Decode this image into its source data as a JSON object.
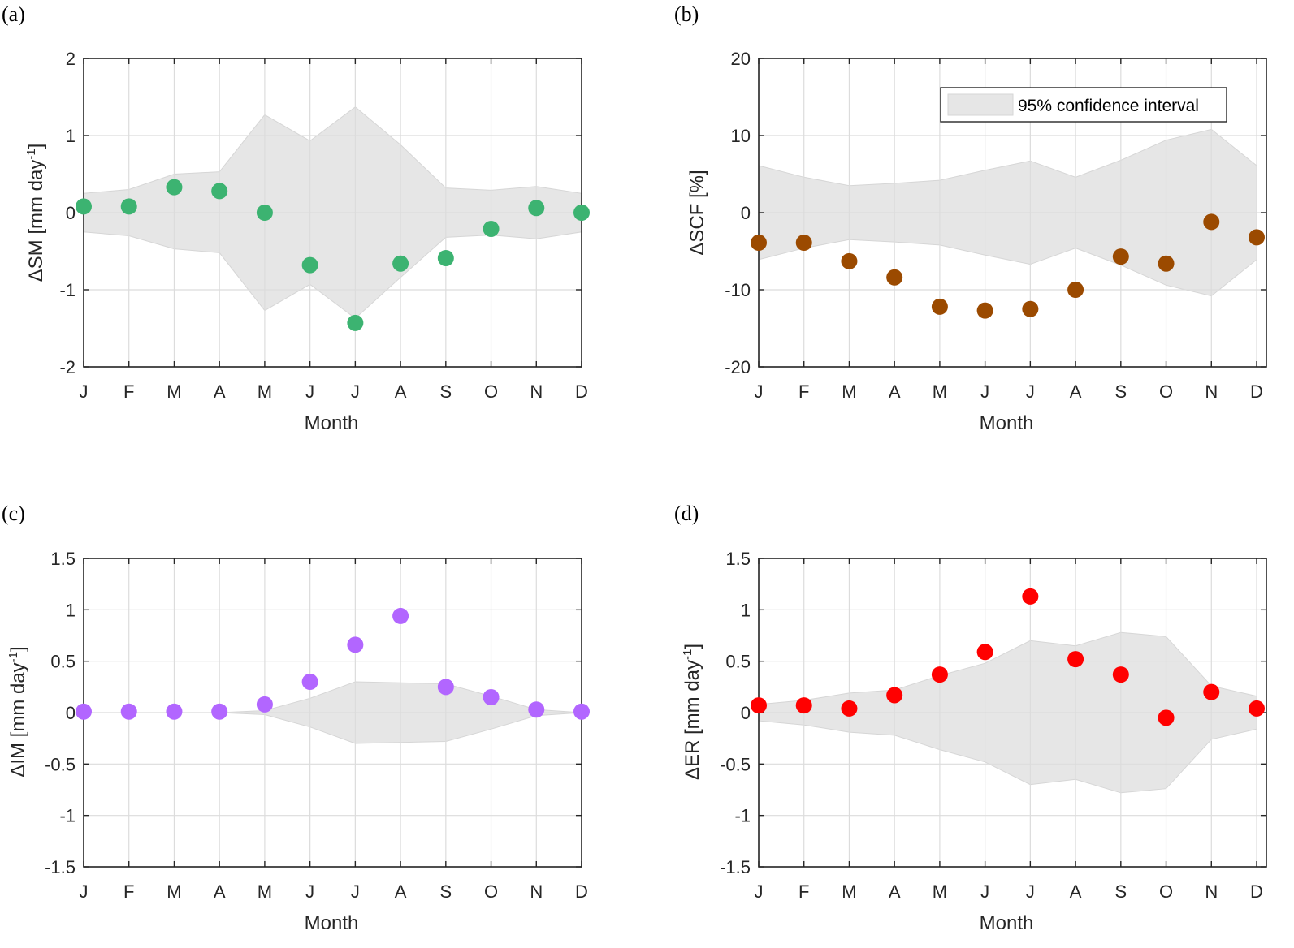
{
  "colors": {
    "band": "#e6e6e6",
    "sm": "#3cb371",
    "scf": "#9b4a00",
    "im": "#b266ff",
    "er": "#ff0000"
  },
  "chart_data": [
    {
      "id": "a",
      "panel_label": "(a)",
      "type": "scatter",
      "categories": [
        "J",
        "F",
        "M",
        "A",
        "M",
        "J",
        "J",
        "A",
        "S",
        "O",
        "N",
        "D"
      ],
      "values": [
        0.08,
        0.08,
        0.33,
        0.28,
        0.0,
        -0.68,
        -1.43,
        -0.66,
        -0.59,
        -0.21,
        0.06,
        0.0
      ],
      "ci_upper": [
        0.25,
        0.3,
        0.5,
        0.53,
        1.27,
        0.93,
        1.37,
        0.88,
        0.32,
        0.29,
        0.34,
        0.25
      ],
      "ci_lower": [
        -0.25,
        -0.3,
        -0.47,
        -0.52,
        -1.27,
        -0.93,
        -1.37,
        -0.84,
        -0.32,
        -0.29,
        -0.34,
        -0.25
      ],
      "ylim": [
        -2,
        2
      ],
      "yticks": [
        -2,
        -1,
        0,
        1,
        2
      ],
      "ytick_labels": [
        "-2",
        "-1",
        "0",
        "1",
        "2"
      ],
      "xlabel": "Month",
      "ylabel": "ΔSM [mm day",
      "ylabel_sup": "-1",
      "ylabel_end": "]",
      "color_key": "sm"
    },
    {
      "id": "b",
      "panel_label": "(b)",
      "type": "scatter",
      "categories": [
        "J",
        "F",
        "M",
        "A",
        "M",
        "J",
        "J",
        "A",
        "S",
        "O",
        "N",
        "D"
      ],
      "values": [
        -3.9,
        -3.9,
        -6.3,
        -8.4,
        -12.2,
        -12.7,
        -12.5,
        -10.0,
        -5.7,
        -6.6,
        -1.2,
        -3.2
      ],
      "ci_upper": [
        6.1,
        4.6,
        3.5,
        3.8,
        4.2,
        5.5,
        6.7,
        4.6,
        6.8,
        9.4,
        10.8,
        6.1
      ],
      "ci_lower": [
        -6.1,
        -4.6,
        -3.5,
        -3.8,
        -4.2,
        -5.5,
        -6.7,
        -4.6,
        -6.8,
        -9.4,
        -10.8,
        -6.1
      ],
      "ylim": [
        -20,
        20
      ],
      "yticks": [
        -20,
        -10,
        0,
        10,
        20
      ],
      "ytick_labels": [
        "-20",
        "-10",
        "0",
        "10",
        "20"
      ],
      "xlabel": "Month",
      "ylabel": "ΔSCF [%]",
      "ylabel_sup": "",
      "ylabel_end": "",
      "legend": "95% confidence interval",
      "color_key": "scf"
    },
    {
      "id": "c",
      "panel_label": "(c)",
      "type": "scatter",
      "categories": [
        "J",
        "F",
        "M",
        "A",
        "M",
        "J",
        "J",
        "A",
        "S",
        "O",
        "N",
        "D"
      ],
      "values": [
        0.01,
        0.01,
        0.01,
        0.01,
        0.08,
        0.3,
        0.66,
        0.94,
        0.25,
        0.15,
        0.03,
        0.01
      ],
      "ci_upper": [
        0.0,
        0.0,
        0.0,
        0.0,
        0.02,
        0.14,
        0.3,
        0.29,
        0.28,
        0.16,
        0.03,
        0.0
      ],
      "ci_lower": [
        0.0,
        0.0,
        0.0,
        0.0,
        -0.02,
        -0.14,
        -0.3,
        -0.29,
        -0.28,
        -0.16,
        -0.03,
        0.0
      ],
      "ylim": [
        -1.5,
        1.5
      ],
      "yticks": [
        -1.5,
        -1,
        -0.5,
        0,
        0.5,
        1,
        1.5
      ],
      "ytick_labels": [
        "-1.5",
        "-1",
        "-0.5",
        "0",
        "0.5",
        "1",
        "1.5"
      ],
      "xlabel": "Month",
      "ylabel": "ΔIM [mm day",
      "ylabel_sup": "-1",
      "ylabel_end": "]",
      "color_key": "im"
    },
    {
      "id": "d",
      "panel_label": "(d)",
      "type": "scatter",
      "categories": [
        "J",
        "F",
        "M",
        "A",
        "M",
        "J",
        "J",
        "A",
        "S",
        "O",
        "N",
        "D"
      ],
      "values": [
        0.07,
        0.07,
        0.04,
        0.17,
        0.37,
        0.59,
        1.13,
        0.52,
        0.37,
        -0.05,
        0.2,
        0.04
      ],
      "ci_upper": [
        0.08,
        0.12,
        0.19,
        0.22,
        0.36,
        0.48,
        0.7,
        0.65,
        0.78,
        0.74,
        0.26,
        0.16
      ],
      "ci_lower": [
        -0.08,
        -0.12,
        -0.19,
        -0.22,
        -0.36,
        -0.48,
        -0.7,
        -0.65,
        -0.78,
        -0.74,
        -0.26,
        -0.16
      ],
      "ylim": [
        -1.5,
        1.5
      ],
      "yticks": [
        -1.5,
        -1,
        -0.5,
        0,
        0.5,
        1,
        1.5
      ],
      "ytick_labels": [
        "-1.5",
        "-1",
        "-0.5",
        "0",
        "0.5",
        "1",
        "1.5"
      ],
      "xlabel": "Month",
      "ylabel": "ΔER [mm day",
      "ylabel_sup": "-1",
      "ylabel_end": "]",
      "color_key": "er"
    }
  ]
}
